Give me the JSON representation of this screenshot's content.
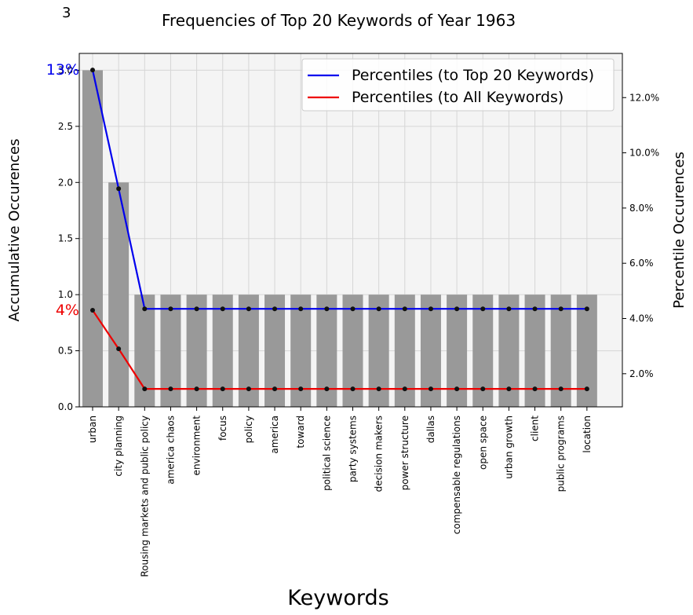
{
  "page_number": "3",
  "chart_data": {
    "type": "bar",
    "title": "Frequencies of Top 20 Keywords of Year 1963",
    "xlabel": "Keywords",
    "ylabel": "Accumulative Occurences",
    "y2label": "Percentile Occurences",
    "categories": [
      "urban",
      "city planning",
      "Rousing markets and public policy",
      "america chaos",
      "environment",
      "focus",
      "policy",
      "america",
      "toward",
      "political science",
      "party systems",
      "decision makers",
      "power structure",
      "dallas",
      "compensable regulations",
      "open space",
      "urban growth",
      "client",
      "public programs",
      "location"
    ],
    "values": [
      3,
      2,
      1,
      1,
      1,
      1,
      1,
      1,
      1,
      1,
      1,
      1,
      1,
      1,
      1,
      1,
      1,
      1,
      1,
      1
    ],
    "ylim": [
      0,
      3.15
    ],
    "yticks": [
      0.0,
      0.5,
      1.0,
      1.5,
      2.0,
      2.5,
      3.0
    ],
    "y2lim": [
      0.8,
      13.6
    ],
    "y2ticks": [
      2.0,
      4.0,
      6.0,
      8.0,
      10.0,
      12.0
    ],
    "y2tick_suffix": "%",
    "grid": true,
    "bar_color": "#999999",
    "series": [
      {
        "name": "Percentiles (to Top 20 Keywords)",
        "color": "#0000ee",
        "values": [
          13.0,
          8.7,
          4.35,
          4.35,
          4.35,
          4.35,
          4.35,
          4.35,
          4.35,
          4.35,
          4.35,
          4.35,
          4.35,
          4.35,
          4.35,
          4.35,
          4.35,
          4.35,
          4.35,
          4.35
        ],
        "annotation": "13%"
      },
      {
        "name": "Percentiles (to All Keywords)",
        "color": "#ee0000",
        "values": [
          4.3,
          2.9,
          1.45,
          1.45,
          1.45,
          1.45,
          1.45,
          1.45,
          1.45,
          1.45,
          1.45,
          1.45,
          1.45,
          1.45,
          1.45,
          1.45,
          1.45,
          1.45,
          1.45,
          1.45
        ],
        "annotation": "4%"
      }
    ],
    "legend_position": "top-right"
  }
}
